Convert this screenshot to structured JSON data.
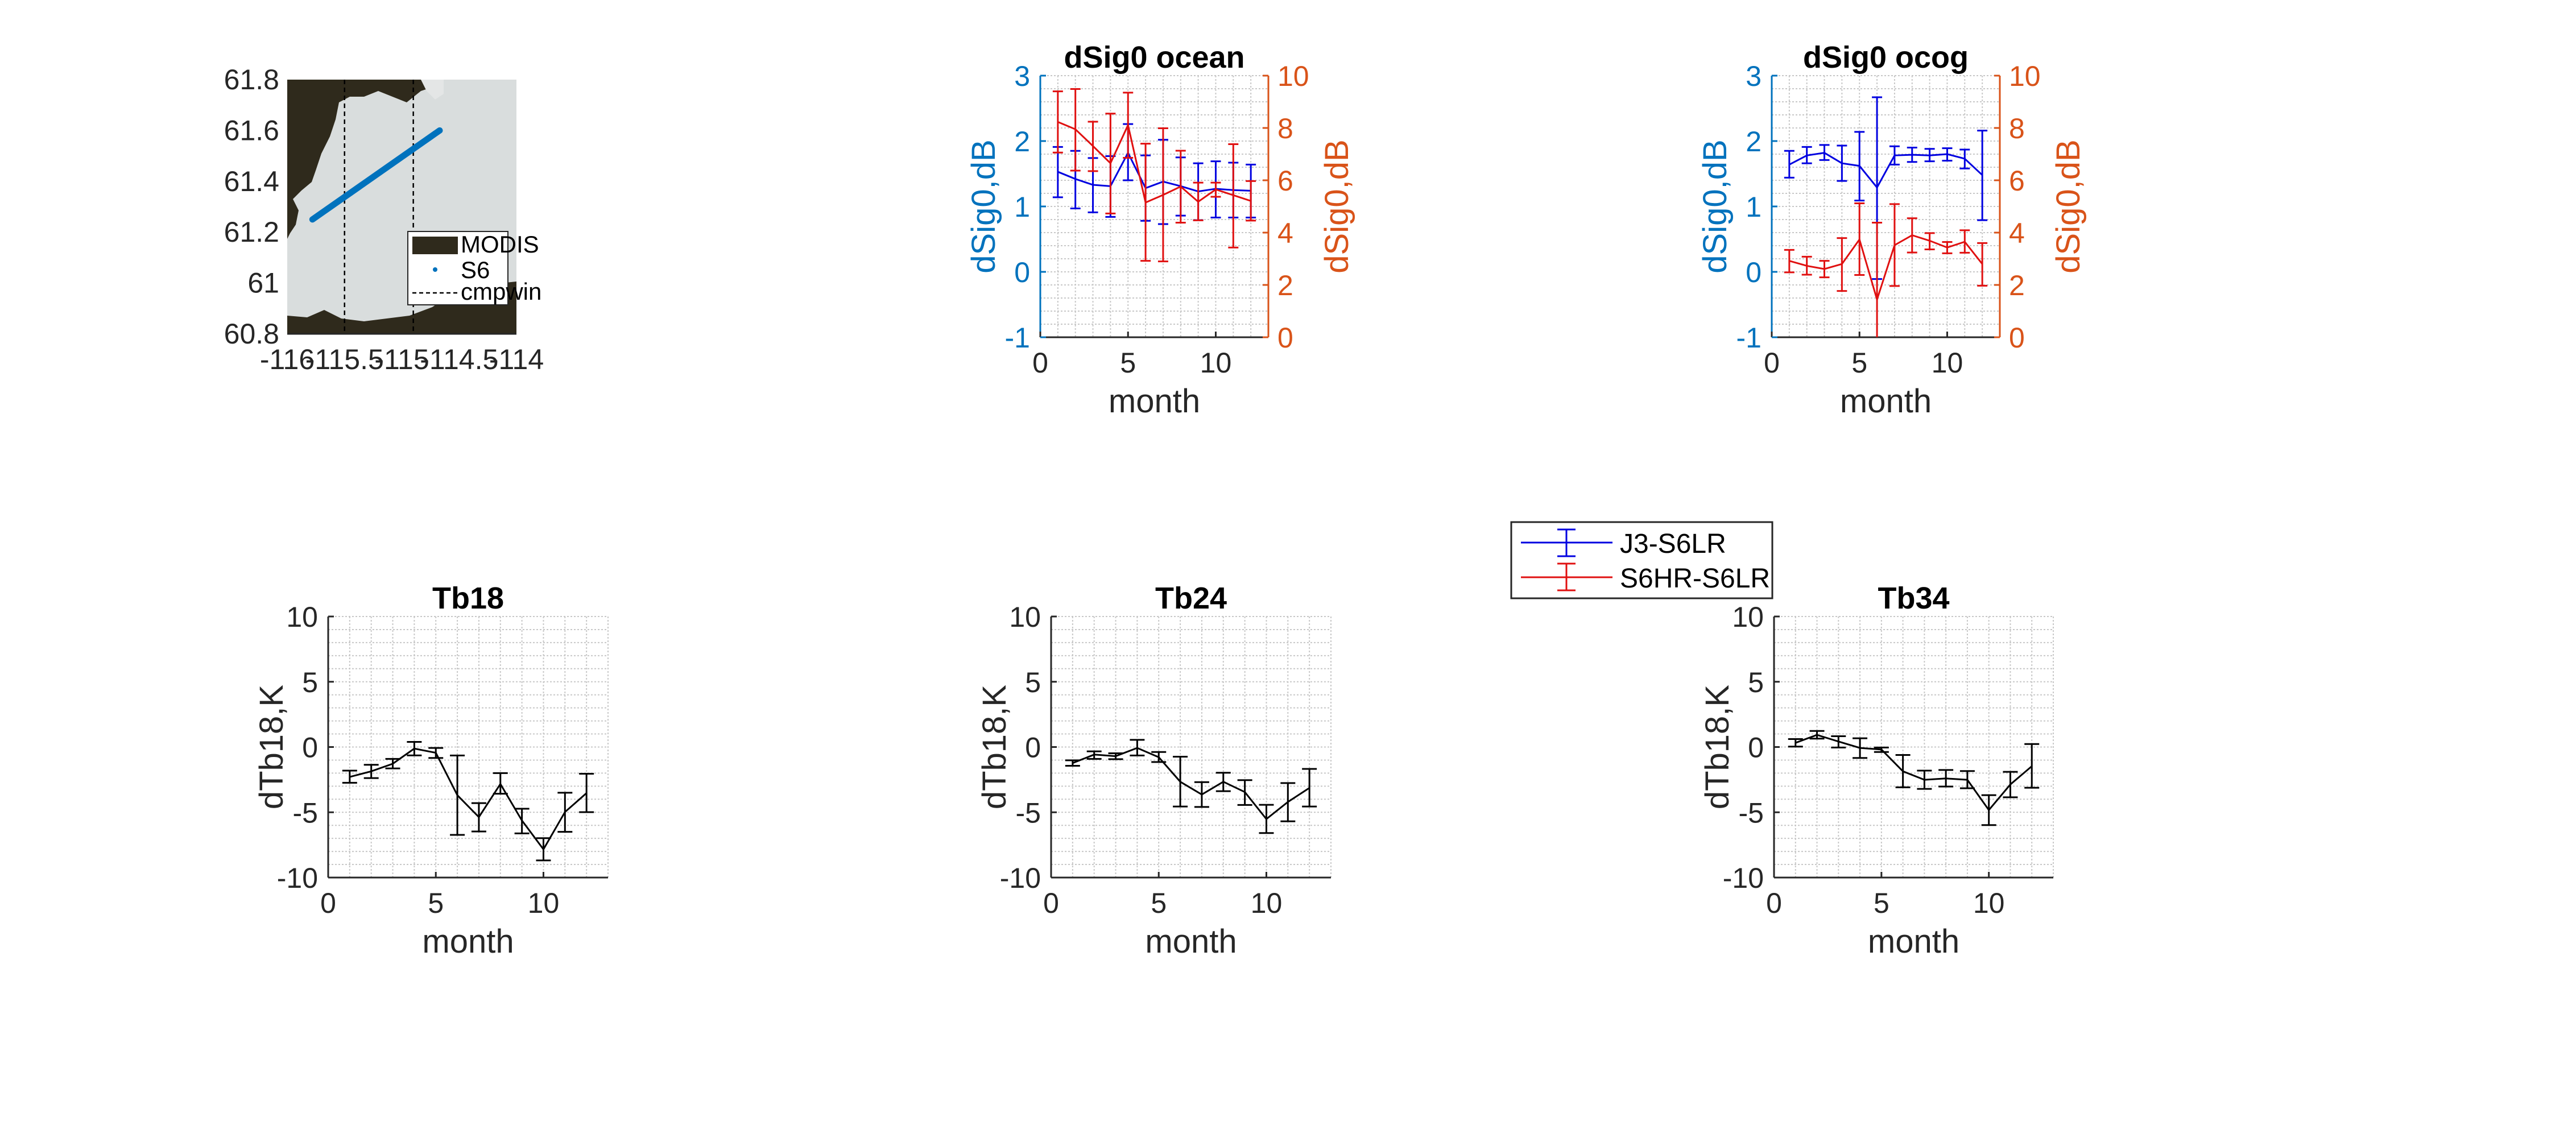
{
  "chart_data": [
    {
      "type": "map",
      "xlim": [
        -116,
        -114
      ],
      "ylim": [
        60.8,
        61.8
      ],
      "xticks": [
        -116,
        -115.5,
        -115,
        -114.5,
        -114
      ],
      "yticks": [
        60.8,
        61,
        61.2,
        61.4,
        61.6,
        61.8
      ],
      "legend_position": "bottom-right",
      "series": [
        {
          "name": "MODIS",
          "kind": "image",
          "color": "#2f2a1c"
        },
        {
          "name": "S6",
          "kind": "points",
          "color": "#0072BD",
          "x": [
            -115.78,
            -114.67
          ],
          "y": [
            61.25,
            61.6
          ]
        },
        {
          "name": "cmpwin",
          "kind": "dashed-vertical",
          "color": "#000000",
          "x": [
            -115.5,
            -114.9
          ]
        }
      ]
    },
    {
      "type": "errorbar",
      "title": "dSig0 ocean",
      "xlabel": "month",
      "ylabel": "dSig0,dB",
      "ylabel_right": "dSig0,dB",
      "xlim": [
        0,
        13
      ],
      "ylim": [
        -1,
        3
      ],
      "ylim_right": [
        0,
        10
      ],
      "xticks": [
        0,
        5,
        10
      ],
      "yticks": [
        -1,
        0,
        1,
        2,
        3
      ],
      "yticks_right": [
        0,
        2,
        4,
        6,
        8,
        10
      ],
      "grid": "on",
      "minor_grid": "on",
      "left_axis_color": "#0072BD",
      "right_axis_color": "#D95319",
      "x": [
        1,
        2,
        3,
        4,
        5,
        6,
        7,
        8,
        9,
        10,
        11,
        12
      ],
      "series": [
        {
          "name": "J3-S6LR",
          "axis": "left",
          "color": "#0000E0",
          "y": [
            1.53,
            1.42,
            1.33,
            1.31,
            1.82,
            1.28,
            1.38,
            1.31,
            1.23,
            1.27,
            1.25,
            1.24
          ],
          "upper": [
            1.91,
            1.85,
            1.74,
            1.77,
            2.26,
            1.78,
            2.02,
            1.75,
            1.66,
            1.69,
            1.67,
            1.64
          ],
          "lower": [
            1.14,
            0.97,
            0.91,
            0.84,
            1.4,
            0.78,
            0.73,
            0.86,
            0.79,
            0.83,
            0.83,
            0.83
          ]
        },
        {
          "name": "S6HR-S6LR",
          "axis": "right",
          "color": "#E01010",
          "y": [
            8.23,
            7.95,
            7.31,
            6.65,
            8.11,
            5.15,
            5.44,
            5.76,
            5.18,
            5.65,
            5.43,
            5.21
          ],
          "upper": [
            9.4,
            9.49,
            8.24,
            8.55,
            9.35,
            7.4,
            7.99,
            7.13,
            5.91,
            5.91,
            7.38,
            5.97
          ],
          "lower": [
            7.06,
            6.37,
            6.35,
            4.73,
            6.86,
            2.92,
            2.9,
            4.38,
            4.47,
            5.37,
            3.43,
            4.46
          ]
        }
      ]
    },
    {
      "type": "errorbar",
      "title": "dSig0 ocog",
      "xlabel": "month",
      "ylabel": "dSig0,dB",
      "ylabel_right": "dSig0,dB",
      "xlim": [
        0,
        13
      ],
      "ylim": [
        -1,
        3
      ],
      "ylim_right": [
        0,
        10
      ],
      "xticks": [
        0,
        5,
        10
      ],
      "yticks": [
        -1,
        0,
        1,
        2,
        3
      ],
      "yticks_right": [
        0,
        2,
        4,
        6,
        8,
        10
      ],
      "grid": "on",
      "minor_grid": "on",
      "left_axis_color": "#0072BD",
      "right_axis_color": "#D95319",
      "x": [
        1,
        2,
        3,
        4,
        5,
        6,
        7,
        8,
        9,
        10,
        11,
        12
      ],
      "series": [
        {
          "name": "J3-S6LR",
          "axis": "left",
          "color": "#0000E0",
          "y": [
            1.64,
            1.78,
            1.82,
            1.66,
            1.62,
            1.29,
            1.78,
            1.79,
            1.78,
            1.8,
            1.73,
            1.48
          ],
          "upper": [
            1.85,
            1.91,
            1.94,
            1.93,
            2.14,
            2.67,
            1.92,
            1.9,
            1.88,
            1.89,
            1.87,
            2.16
          ],
          "lower": [
            1.44,
            1.66,
            1.71,
            1.39,
            1.09,
            -0.11,
            1.64,
            1.68,
            1.69,
            1.7,
            1.58,
            0.79
          ]
        },
        {
          "name": "S6HR-S6LR",
          "axis": "right",
          "color": "#E01010",
          "y": [
            2.92,
            2.73,
            2.61,
            2.8,
            3.74,
            1.44,
            3.52,
            3.9,
            3.69,
            3.43,
            3.65,
            2.8
          ],
          "upper": [
            3.34,
            3.08,
            2.92,
            3.79,
            5.12,
            4.38,
            5.09,
            4.55,
            3.98,
            3.64,
            4.09,
            3.6
          ],
          "lower": [
            2.48,
            2.39,
            2.29,
            1.77,
            2.38,
            -1.5,
            1.96,
            3.24,
            3.36,
            3.21,
            3.23,
            1.97
          ]
        }
      ]
    },
    {
      "type": "errorbar",
      "title": "Tb18",
      "xlabel": "month",
      "ylabel": "dTb18,K",
      "xlim": [
        0,
        13
      ],
      "ylim": [
        -10,
        10
      ],
      "xticks": [
        0,
        5,
        10
      ],
      "yticks": [
        -10,
        -5,
        0,
        5,
        10
      ],
      "grid": "on",
      "minor_grid": "on",
      "x": [
        1,
        2,
        3,
        4,
        5,
        6,
        7,
        8,
        9,
        10,
        11,
        12
      ],
      "series": [
        {
          "axis": "left",
          "color": "#000000",
          "y": [
            -2.29,
            -1.86,
            -1.28,
            -0.12,
            -0.44,
            -3.69,
            -5.37,
            -2.83,
            -5.63,
            -7.84,
            -4.98,
            -3.53
          ],
          "upper": [
            -1.81,
            -1.36,
            -0.91,
            0.39,
            -0.07,
            -0.65,
            -4.3,
            -2.0,
            -4.73,
            -6.98,
            -3.5,
            -2.05
          ],
          "lower": [
            -2.74,
            -2.38,
            -1.64,
            -0.64,
            -0.84,
            -6.73,
            -6.47,
            -3.58,
            -6.62,
            -8.69,
            -6.5,
            -4.99
          ]
        }
      ]
    },
    {
      "type": "errorbar",
      "title": "Tb24",
      "xlabel": "month",
      "ylabel": "dTb18,K",
      "xlim": [
        0,
        13
      ],
      "ylim": [
        -10,
        10
      ],
      "xticks": [
        0,
        5,
        10
      ],
      "yticks": [
        -10,
        -5,
        0,
        5,
        10
      ],
      "grid": "on",
      "minor_grid": "on",
      "x": [
        1,
        2,
        3,
        4,
        5,
        6,
        7,
        8,
        9,
        10,
        11,
        12
      ],
      "series": [
        {
          "axis": "left",
          "color": "#000000",
          "y": [
            -1.23,
            -0.58,
            -0.7,
            -0.07,
            -0.78,
            -2.66,
            -3.64,
            -2.66,
            -3.45,
            -5.52,
            -4.21,
            -3.13
          ],
          "upper": [
            -1.02,
            -0.33,
            -0.48,
            0.55,
            -0.38,
            -0.74,
            -2.69,
            -1.97,
            -2.54,
            -4.43,
            -2.76,
            -1.68
          ],
          "lower": [
            -1.44,
            -0.91,
            -0.93,
            -0.65,
            -1.15,
            -4.56,
            -4.59,
            -3.38,
            -4.44,
            -6.59,
            -5.69,
            -4.56
          ]
        }
      ]
    },
    {
      "type": "errorbar",
      "title": "Tb34",
      "xlabel": "month",
      "ylabel": "dTb18,K",
      "xlim": [
        0,
        13
      ],
      "ylim": [
        -10,
        10
      ],
      "xticks": [
        0,
        5,
        10
      ],
      "yticks": [
        -10,
        -5,
        0,
        5,
        10
      ],
      "grid": "on",
      "minor_grid": "on",
      "x": [
        1,
        2,
        3,
        4,
        5,
        6,
        7,
        8,
        9,
        10,
        11,
        12
      ],
      "series": [
        {
          "axis": "left",
          "color": "#000000",
          "y": [
            0.32,
            0.93,
            0.42,
            -0.07,
            -0.19,
            -1.86,
            -2.51,
            -2.41,
            -2.51,
            -4.83,
            -2.87,
            -1.47
          ],
          "upper": [
            0.61,
            1.23,
            0.83,
            0.67,
            -0.04,
            -0.61,
            -1.81,
            -1.76,
            -1.84,
            -3.69,
            -1.9,
            0.23
          ],
          "lower": [
            0.03,
            0.64,
            -0.04,
            -0.84,
            -0.38,
            -3.09,
            -3.21,
            -3.03,
            -3.16,
            -5.98,
            -3.85,
            -3.12
          ]
        }
      ]
    }
  ],
  "shared_legend": {
    "position": "between dSig0 panels and bottom row",
    "entries": [
      "J3-S6LR",
      "S6HR-S6LR"
    ]
  }
}
